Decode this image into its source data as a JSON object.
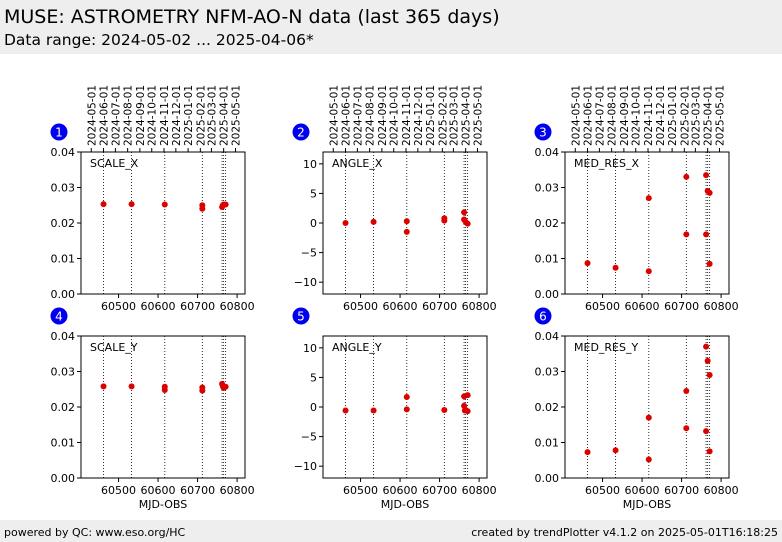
{
  "header": {
    "title": "MUSE: ASTROMETRY NFM-AO-N data (last 365 days)",
    "subtitle": "Data range: 2024-05-02 ... 2025-04-06*"
  },
  "footer": {
    "left": "powered by QC: www.eso.org/HC",
    "right": "created by trendPlotter v4.1.2 on 2025-05-01T16:18:25"
  },
  "colors": {
    "points": "#dd0000",
    "badge": "#0000ee",
    "header_bg": "#eeeeee"
  },
  "top_axis_dates": [
    "2024-05-01",
    "2024-06-01",
    "2024-07-01",
    "2024-08-01",
    "2024-09-01",
    "2024-10-01",
    "2024-11-01",
    "2024-12-01",
    "2025-01-01",
    "2025-02-01",
    "2025-03-01",
    "2025-04-01",
    "2025-05-01"
  ],
  "top_axis_mjd": [
    60431,
    60462,
    60492,
    60523,
    60554,
    60584,
    60615,
    60645,
    60676,
    60707,
    60735,
    60766,
    60796
  ],
  "chart_data": [
    {
      "type": "scatter",
      "panel": "1",
      "label": "SCALE_X",
      "xlabel": "",
      "xlim": [
        60405,
        60820
      ],
      "ylim": [
        0.0,
        0.04
      ],
      "xticks": [
        60500,
        60600,
        60700,
        60800
      ],
      "yticks": [
        0.0,
        0.01,
        0.02,
        0.03,
        0.04
      ],
      "ytick_labels": [
        "0.00",
        "0.01",
        "0.02",
        "0.03",
        "0.04"
      ],
      "vlines": [
        60462,
        60533,
        60617,
        60712,
        60762,
        60766,
        60771
      ],
      "x": [
        60462,
        60533,
        60617,
        60712,
        60712,
        60762,
        60764,
        60766,
        60771
      ],
      "y": [
        0.0253,
        0.0253,
        0.0252,
        0.025,
        0.024,
        0.0245,
        0.025,
        0.0252,
        0.0252
      ]
    },
    {
      "type": "scatter",
      "panel": "2",
      "label": "ANGLE_X",
      "xlabel": "",
      "xlim": [
        60405,
        60820
      ],
      "ylim": [
        -12,
        12
      ],
      "xticks": [
        60500,
        60600,
        60700,
        60800
      ],
      "yticks": [
        -10,
        -5,
        0,
        5,
        10
      ],
      "ytick_labels": [
        "−10",
        "−5",
        "0",
        "5",
        "10"
      ],
      "vlines": [
        60462,
        60533,
        60617,
        60712,
        60762,
        60766,
        60771
      ],
      "x": [
        60462,
        60533,
        60617,
        60617,
        60712,
        60712,
        60762,
        60762,
        60766,
        60771
      ],
      "y": [
        0.0,
        0.2,
        0.3,
        -1.5,
        0.4,
        0.8,
        1.8,
        0.6,
        0.2,
        -0.1
      ]
    },
    {
      "type": "scatter",
      "panel": "3",
      "label": "MED_RES_X",
      "xlabel": "",
      "xlim": [
        60405,
        60820
      ],
      "ylim": [
        0.0,
        0.04
      ],
      "xticks": [
        60500,
        60600,
        60700,
        60800
      ],
      "yticks": [
        0.0,
        0.01,
        0.02,
        0.03,
        0.04
      ],
      "ytick_labels": [
        "0.00",
        "0.01",
        "0.02",
        "0.03",
        "0.04"
      ],
      "vlines": [
        60462,
        60533,
        60617,
        60712,
        60762,
        60766,
        60771
      ],
      "x": [
        60462,
        60533,
        60617,
        60617,
        60712,
        60712,
        60762,
        60762,
        60766,
        60771,
        60771
      ],
      "y": [
        0.0087,
        0.0074,
        0.0064,
        0.027,
        0.033,
        0.0168,
        0.0335,
        0.0168,
        0.029,
        0.0285,
        0.0085
      ]
    },
    {
      "type": "scatter",
      "panel": "4",
      "label": "SCALE_Y",
      "xlabel": "MJD-OBS",
      "xlim": [
        60405,
        60820
      ],
      "ylim": [
        0.0,
        0.04
      ],
      "xticks": [
        60500,
        60600,
        60700,
        60800
      ],
      "yticks": [
        0.0,
        0.01,
        0.02,
        0.03,
        0.04
      ],
      "ytick_labels": [
        "0.00",
        "0.01",
        "0.02",
        "0.03",
        "0.04"
      ],
      "vlines": [
        60462,
        60533,
        60617,
        60712,
        60762,
        60766,
        60771
      ],
      "x": [
        60462,
        60533,
        60617,
        60617,
        60712,
        60712,
        60762,
        60764,
        60766,
        60771
      ],
      "y": [
        0.0258,
        0.0258,
        0.0257,
        0.0248,
        0.0255,
        0.0246,
        0.0265,
        0.0258,
        0.0254,
        0.0257
      ]
    },
    {
      "type": "scatter",
      "panel": "5",
      "label": "ANGLE_Y",
      "xlabel": "MJD-OBS",
      "xlim": [
        60405,
        60820
      ],
      "ylim": [
        -12,
        12
      ],
      "xticks": [
        60500,
        60600,
        60700,
        60800
      ],
      "yticks": [
        -10,
        -5,
        0,
        5,
        10
      ],
      "ytick_labels": [
        "−10",
        "−5",
        "0",
        "5",
        "10"
      ],
      "vlines": [
        60462,
        60533,
        60617,
        60712,
        60762,
        60766,
        60771
      ],
      "x": [
        60462,
        60533,
        60617,
        60617,
        60712,
        60762,
        60762,
        60764,
        60766,
        60771,
        60771
      ],
      "y": [
        -0.6,
        -0.6,
        1.7,
        -0.4,
        -0.5,
        1.8,
        0.2,
        -0.6,
        -0.5,
        2.0,
        -0.7
      ]
    },
    {
      "type": "scatter",
      "panel": "6",
      "label": "MED_RES_Y",
      "xlabel": "MJD-OBS",
      "xlim": [
        60405,
        60820
      ],
      "ylim": [
        0.0,
        0.04
      ],
      "xticks": [
        60500,
        60600,
        60700,
        60800
      ],
      "yticks": [
        0.0,
        0.01,
        0.02,
        0.03,
        0.04
      ],
      "ytick_labels": [
        "0.00",
        "0.01",
        "0.02",
        "0.03",
        "0.04"
      ],
      "vlines": [
        60462,
        60533,
        60617,
        60712,
        60762,
        60766,
        60771
      ],
      "x": [
        60462,
        60533,
        60617,
        60617,
        60712,
        60712,
        60762,
        60762,
        60766,
        60771,
        60771
      ],
      "y": [
        0.0073,
        0.0078,
        0.0052,
        0.017,
        0.0245,
        0.014,
        0.037,
        0.0132,
        0.033,
        0.029,
        0.0075
      ]
    }
  ]
}
